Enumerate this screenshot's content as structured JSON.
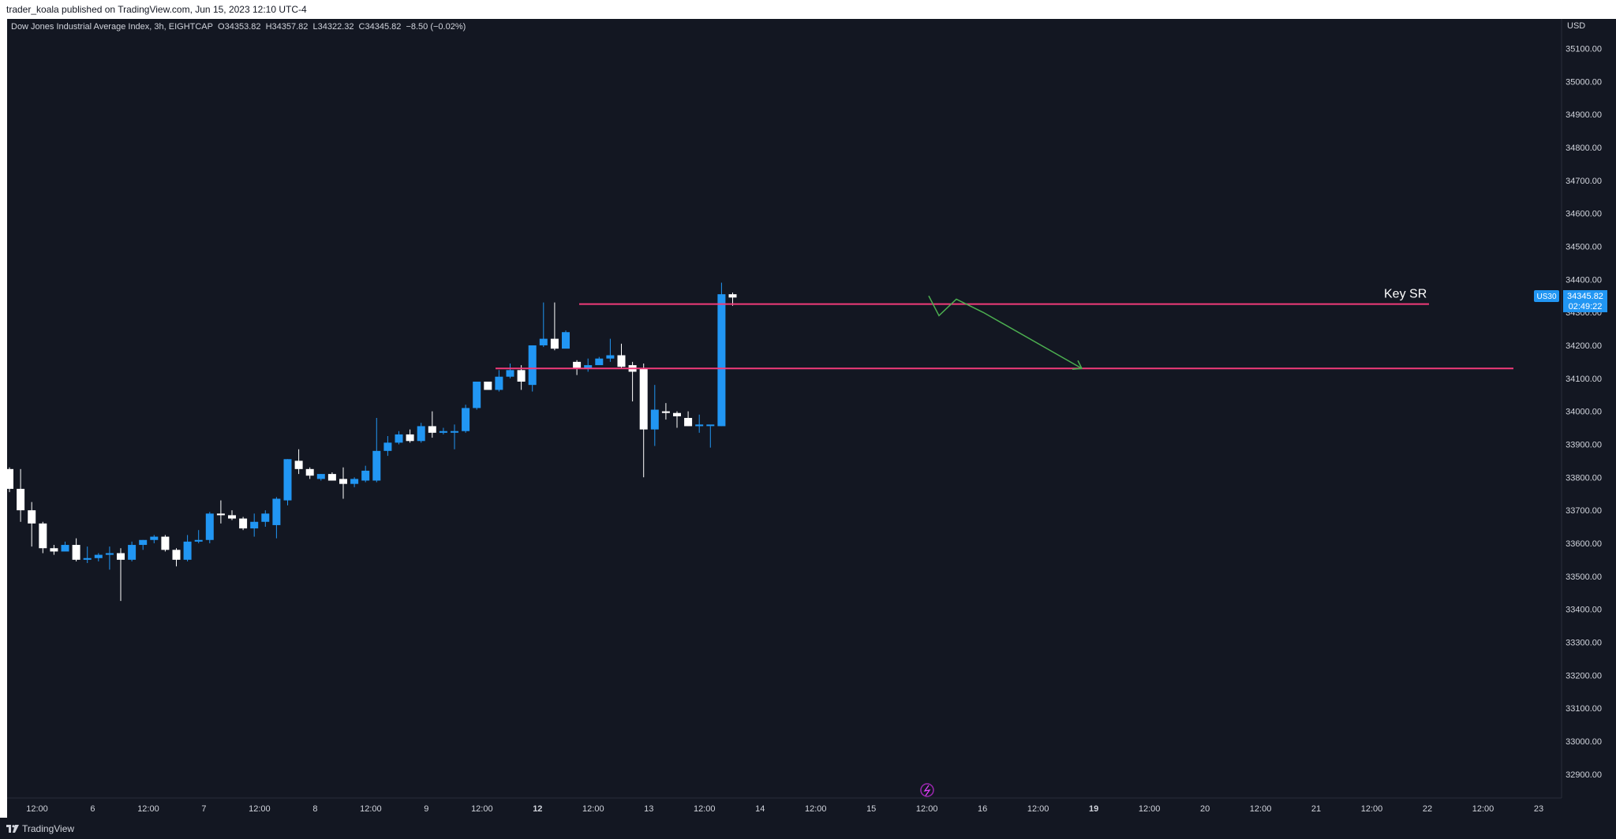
{
  "header": {
    "publisher": "trader_koala published on TradingView.com, Jun 15, 2023 12:10 UTC-4"
  },
  "legend": {
    "symbol": "Dow Jones Industrial Average Index, 3h, EIGHTCAP",
    "open_label": "O",
    "open": "34353.82",
    "high_label": "H",
    "high": "34357.82",
    "low_label": "L",
    "low": "34322.32",
    "close_label": "C",
    "close": "34345.82",
    "change": "−8.50 (−0.02%)"
  },
  "price_axis": {
    "currency": "USD",
    "ticks": [
      "35100.00",
      "35000.00",
      "34900.00",
      "34800.00",
      "34700.00",
      "34600.00",
      "34500.00",
      "34400.00",
      "34300.00",
      "34200.00",
      "34100.00",
      "34000.00",
      "33900.00",
      "33800.00",
      "33700.00",
      "33600.00",
      "33500.00",
      "33400.00",
      "33300.00",
      "33200.00",
      "33100.00",
      "33000.00",
      "32900.00"
    ],
    "symbol_tag": "US30",
    "last_price": "34345.82",
    "countdown": "02:49:22"
  },
  "time_axis": {
    "labels": [
      "12:00",
      "6",
      "12:00",
      "7",
      "12:00",
      "8",
      "12:00",
      "9",
      "12:00",
      "12",
      "12:00",
      "13",
      "12:00",
      "14",
      "12:00",
      "15",
      "12:00",
      "16",
      "12:00",
      "19",
      "12:00",
      "20",
      "12:00",
      "21",
      "12:00",
      "22",
      "12:00",
      "23"
    ],
    "bold": [
      "12",
      "19"
    ]
  },
  "annotation": {
    "key_sr_label": "Key SR"
  },
  "footer": {
    "brand": "TradingView"
  },
  "colors": {
    "background": "#131722",
    "up_candle": "#2196f3",
    "down_candle": "#ffffff",
    "sr_line": "#f23b7a",
    "projection": "#4caf50",
    "axis_text": "#d1d4dc",
    "price_tag": "#2196f3"
  },
  "chart_data": {
    "type": "candlestick",
    "title": "Dow Jones Industrial Average Index, 3h, EIGHTCAP",
    "ylim": [
      32850,
      35150
    ],
    "grid": false,
    "levels": [
      {
        "label": "Key SR",
        "price": 34325
      },
      {
        "label": "",
        "price": 34130
      }
    ],
    "projection_path": [
      34350,
      34290,
      34340,
      34300,
      34130
    ],
    "candles": [
      [
        33825,
        33830,
        33755,
        33765
      ],
      [
        33765,
        33825,
        33665,
        33700
      ],
      [
        33700,
        33725,
        33590,
        33660
      ],
      [
        33660,
        33665,
        33570,
        33585
      ],
      [
        33585,
        33595,
        33565,
        33575
      ],
      [
        33575,
        33605,
        33580,
        33595
      ],
      [
        33595,
        33615,
        33545,
        33550
      ],
      [
        33550,
        33590,
        33540,
        33555
      ],
      [
        33555,
        33570,
        33545,
        33565
      ],
      [
        33565,
        33590,
        33520,
        33570
      ],
      [
        33570,
        33585,
        33425,
        33550
      ],
      [
        33550,
        33605,
        33545,
        33595
      ],
      [
        33595,
        33610,
        33580,
        33610
      ],
      [
        33610,
        33625,
        33600,
        33620
      ],
      [
        33620,
        33625,
        33575,
        33580
      ],
      [
        33580,
        33585,
        33530,
        33550
      ],
      [
        33550,
        33625,
        33545,
        33605
      ],
      [
        33605,
        33640,
        33600,
        33610
      ],
      [
        33610,
        33695,
        33600,
        33690
      ],
      [
        33690,
        33730,
        33660,
        33685
      ],
      [
        33685,
        33700,
        33670,
        33675
      ],
      [
        33675,
        33680,
        33640,
        33645
      ],
      [
        33645,
        33690,
        33620,
        33665
      ],
      [
        33665,
        33700,
        33650,
        33690
      ],
      [
        33655,
        33740,
        33615,
        33735
      ],
      [
        33730,
        33855,
        33715,
        33855
      ],
      [
        33850,
        33885,
        33810,
        33825
      ],
      [
        33825,
        33830,
        33795,
        33805
      ],
      [
        33795,
        33810,
        33790,
        33810
      ],
      [
        33810,
        33815,
        33790,
        33790
      ],
      [
        33795,
        33830,
        33735,
        33780
      ],
      [
        33780,
        33800,
        33770,
        33795
      ],
      [
        33790,
        33835,
        33785,
        33820
      ],
      [
        33790,
        33980,
        33785,
        33880
      ],
      [
        33880,
        33925,
        33865,
        33905
      ],
      [
        33905,
        33940,
        33900,
        33930
      ],
      [
        33930,
        33945,
        33905,
        33910
      ],
      [
        33910,
        33965,
        33905,
        33955
      ],
      [
        33955,
        34000,
        33920,
        33935
      ],
      [
        33935,
        33950,
        33930,
        33940
      ],
      [
        33940,
        33960,
        33885,
        33940
      ],
      [
        33940,
        34020,
        33935,
        34010
      ],
      [
        34010,
        34085,
        34005,
        34090
      ],
      [
        34090,
        34085,
        34070,
        34065
      ],
      [
        34065,
        34125,
        34060,
        34105
      ],
      [
        34105,
        34145,
        34100,
        34125
      ],
      [
        34125,
        34140,
        34065,
        34090
      ],
      [
        34080,
        34200,
        34060,
        34200
      ],
      [
        34200,
        34330,
        34195,
        34220
      ],
      [
        34220,
        34330,
        34185,
        34190
      ],
      [
        34190,
        34245,
        34200,
        34240
      ],
      [
        34150,
        34155,
        34110,
        34130
      ],
      [
        34130,
        34160,
        34120,
        34140
      ],
      [
        34140,
        34165,
        34145,
        34160
      ],
      [
        34160,
        34220,
        34150,
        34170
      ],
      [
        34170,
        34205,
        34130,
        34135
      ],
      [
        34140,
        34150,
        34030,
        34120
      ],
      [
        34130,
        34145,
        33800,
        33945
      ],
      [
        33945,
        34080,
        33895,
        34005
      ],
      [
        34000,
        34025,
        33975,
        33995
      ],
      [
        33995,
        34000,
        33950,
        33985
      ],
      [
        33980,
        34000,
        33955,
        33955
      ],
      [
        33955,
        33990,
        33935,
        33960
      ],
      [
        33960,
        33955,
        33890,
        33960
      ],
      [
        33955,
        34390,
        33955,
        34355
      ],
      [
        34355,
        34360,
        34320,
        34345
      ]
    ]
  }
}
